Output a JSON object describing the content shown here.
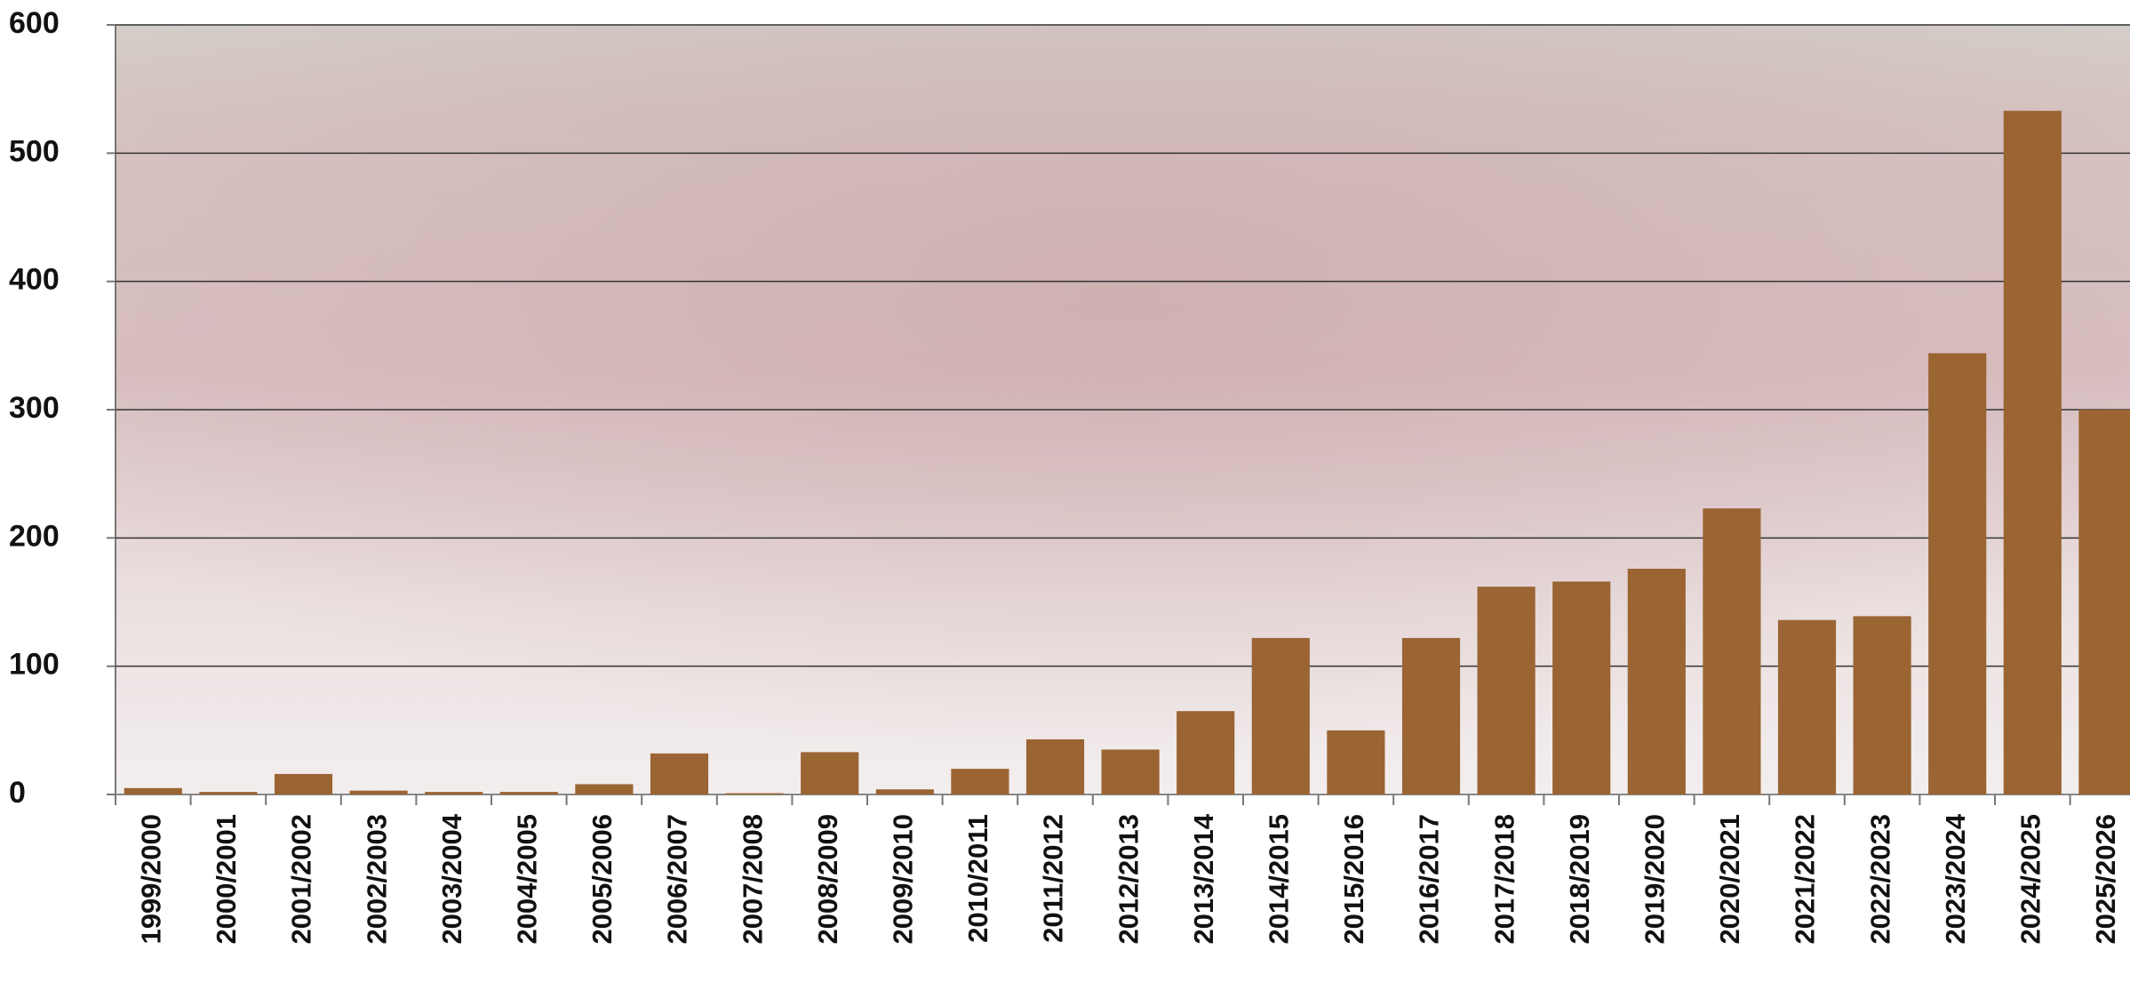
{
  "chart_data": {
    "type": "bar",
    "categories": [
      "1999/2000",
      "2000/2001",
      "2001/2002",
      "2002/2003",
      "2003/2004",
      "2004/2005",
      "2005/2006",
      "2006/2007",
      "2007/2008",
      "2008/2009",
      "2009/2010",
      "2010/2011",
      "2011/2012",
      "2012/2013",
      "2013/2014",
      "2014/2015",
      "2015/2016",
      "2016/2017",
      "2017/2018",
      "2018/2019",
      "2019/2020",
      "2020/2021",
      "2021/2022",
      "2022/2023",
      "2023/2024",
      "2024/2025",
      "2025/2026"
    ],
    "values": [
      5,
      2,
      16,
      3,
      2,
      2,
      8,
      32,
      1,
      33,
      4,
      20,
      43,
      35,
      65,
      122,
      50,
      122,
      162,
      166,
      176,
      223,
      136,
      139,
      344,
      533,
      300
    ],
    "color": "#9a6433",
    "ylim": [
      0,
      600
    ],
    "yticks": [
      0,
      100,
      200,
      300,
      400,
      500,
      600
    ],
    "grid": true
  }
}
